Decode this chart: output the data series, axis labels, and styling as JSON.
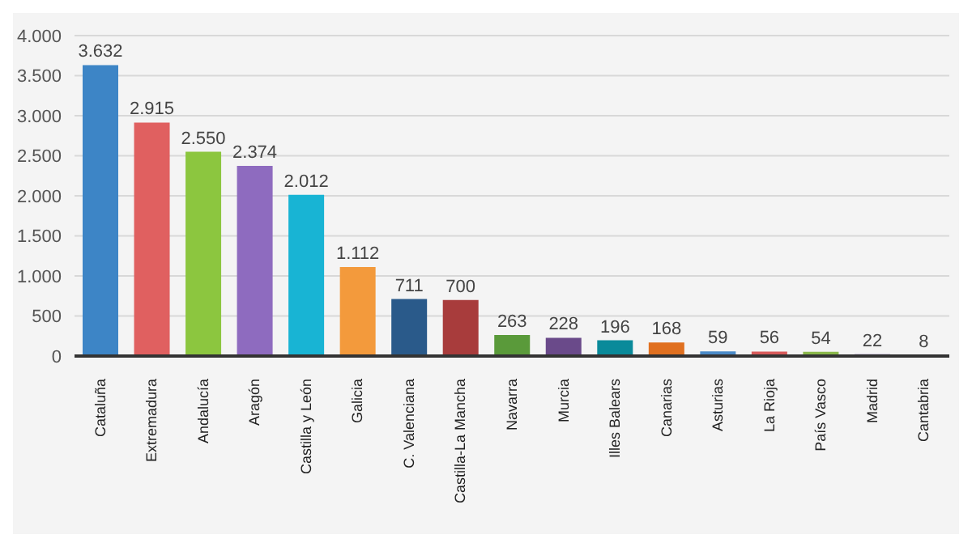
{
  "chart_data": {
    "type": "bar",
    "categories": [
      "Cataluña",
      "Extremadura",
      "Andalucía",
      "Aragón",
      "Castilla y León",
      "Galicia",
      "C. Valenciana",
      "Castilla-La Mancha",
      "Navarra",
      "Murcia",
      "Illes Balears",
      "Canarias",
      "Asturias",
      "La Rioja",
      "País Vasco",
      "Madrid",
      "Cantabria"
    ],
    "values": [
      3632,
      2915,
      2550,
      2374,
      2012,
      1112,
      711,
      700,
      263,
      228,
      196,
      168,
      59,
      56,
      54,
      22,
      8
    ],
    "value_labels": [
      "3.632",
      "2.915",
      "2.550",
      "2.374",
      "2.012",
      "1.112",
      "711",
      "700",
      "263",
      "228",
      "196",
      "168",
      "59",
      "56",
      "54",
      "22",
      "8"
    ],
    "colors": [
      "#3d85c6",
      "#e06060",
      "#8cc63f",
      "#8e6bbf",
      "#18b4d4",
      "#f39a3c",
      "#2a5a8a",
      "#a83c3c",
      "#5a9a3a",
      "#6a4a8a",
      "#0a8a9a",
      "#e07020",
      "#4a8ac8",
      "#d85a5a",
      "#8ab84a",
      "#7a5aa8",
      "#20a8b8"
    ],
    "ylim": [
      0,
      4000
    ],
    "yticks": [
      0,
      500,
      {
        "value": 1000,
        "label": "1.000"
      },
      {
        "value": 1500,
        "label": "1.500"
      },
      {
        "value": 2000,
        "label": "2.000"
      },
      {
        "value": 2500,
        "label": "2.500"
      },
      {
        "value": 3000,
        "label": "3.000"
      },
      {
        "value": 3500,
        "label": "3.500"
      },
      {
        "value": 4000,
        "label": "4.000"
      }
    ],
    "grid": "y"
  }
}
